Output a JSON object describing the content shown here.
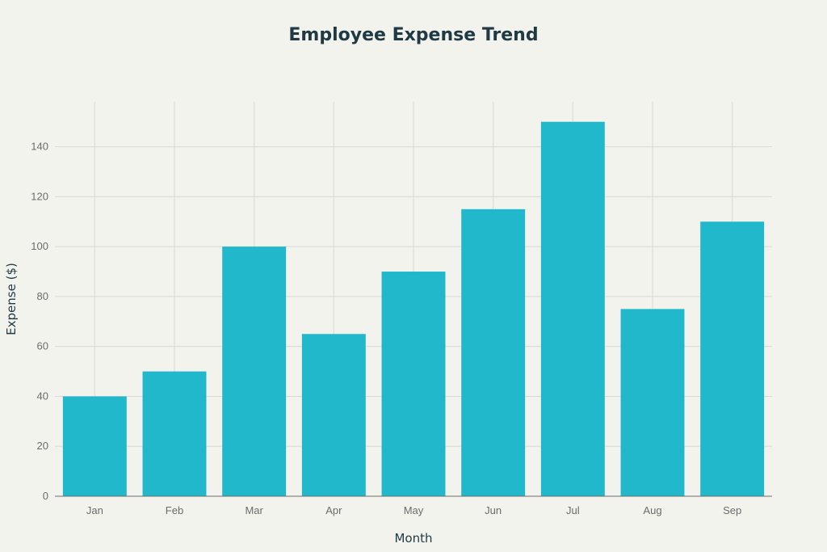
{
  "chart_data": {
    "type": "bar",
    "title": "Employee Expense Trend",
    "xlabel": "Month",
    "ylabel": "Expense ($)",
    "categories": [
      "Jan",
      "Feb",
      "Mar",
      "Apr",
      "May",
      "Jun",
      "Jul",
      "Aug",
      "Sep"
    ],
    "values": [
      40,
      50,
      100,
      65,
      90,
      115,
      150,
      75,
      110
    ],
    "ylim": [
      0,
      158
    ],
    "yticks": [
      0,
      20,
      40,
      60,
      80,
      100,
      120,
      140
    ],
    "grid": true,
    "legend": "none",
    "bar_color": "#21b8cc"
  }
}
